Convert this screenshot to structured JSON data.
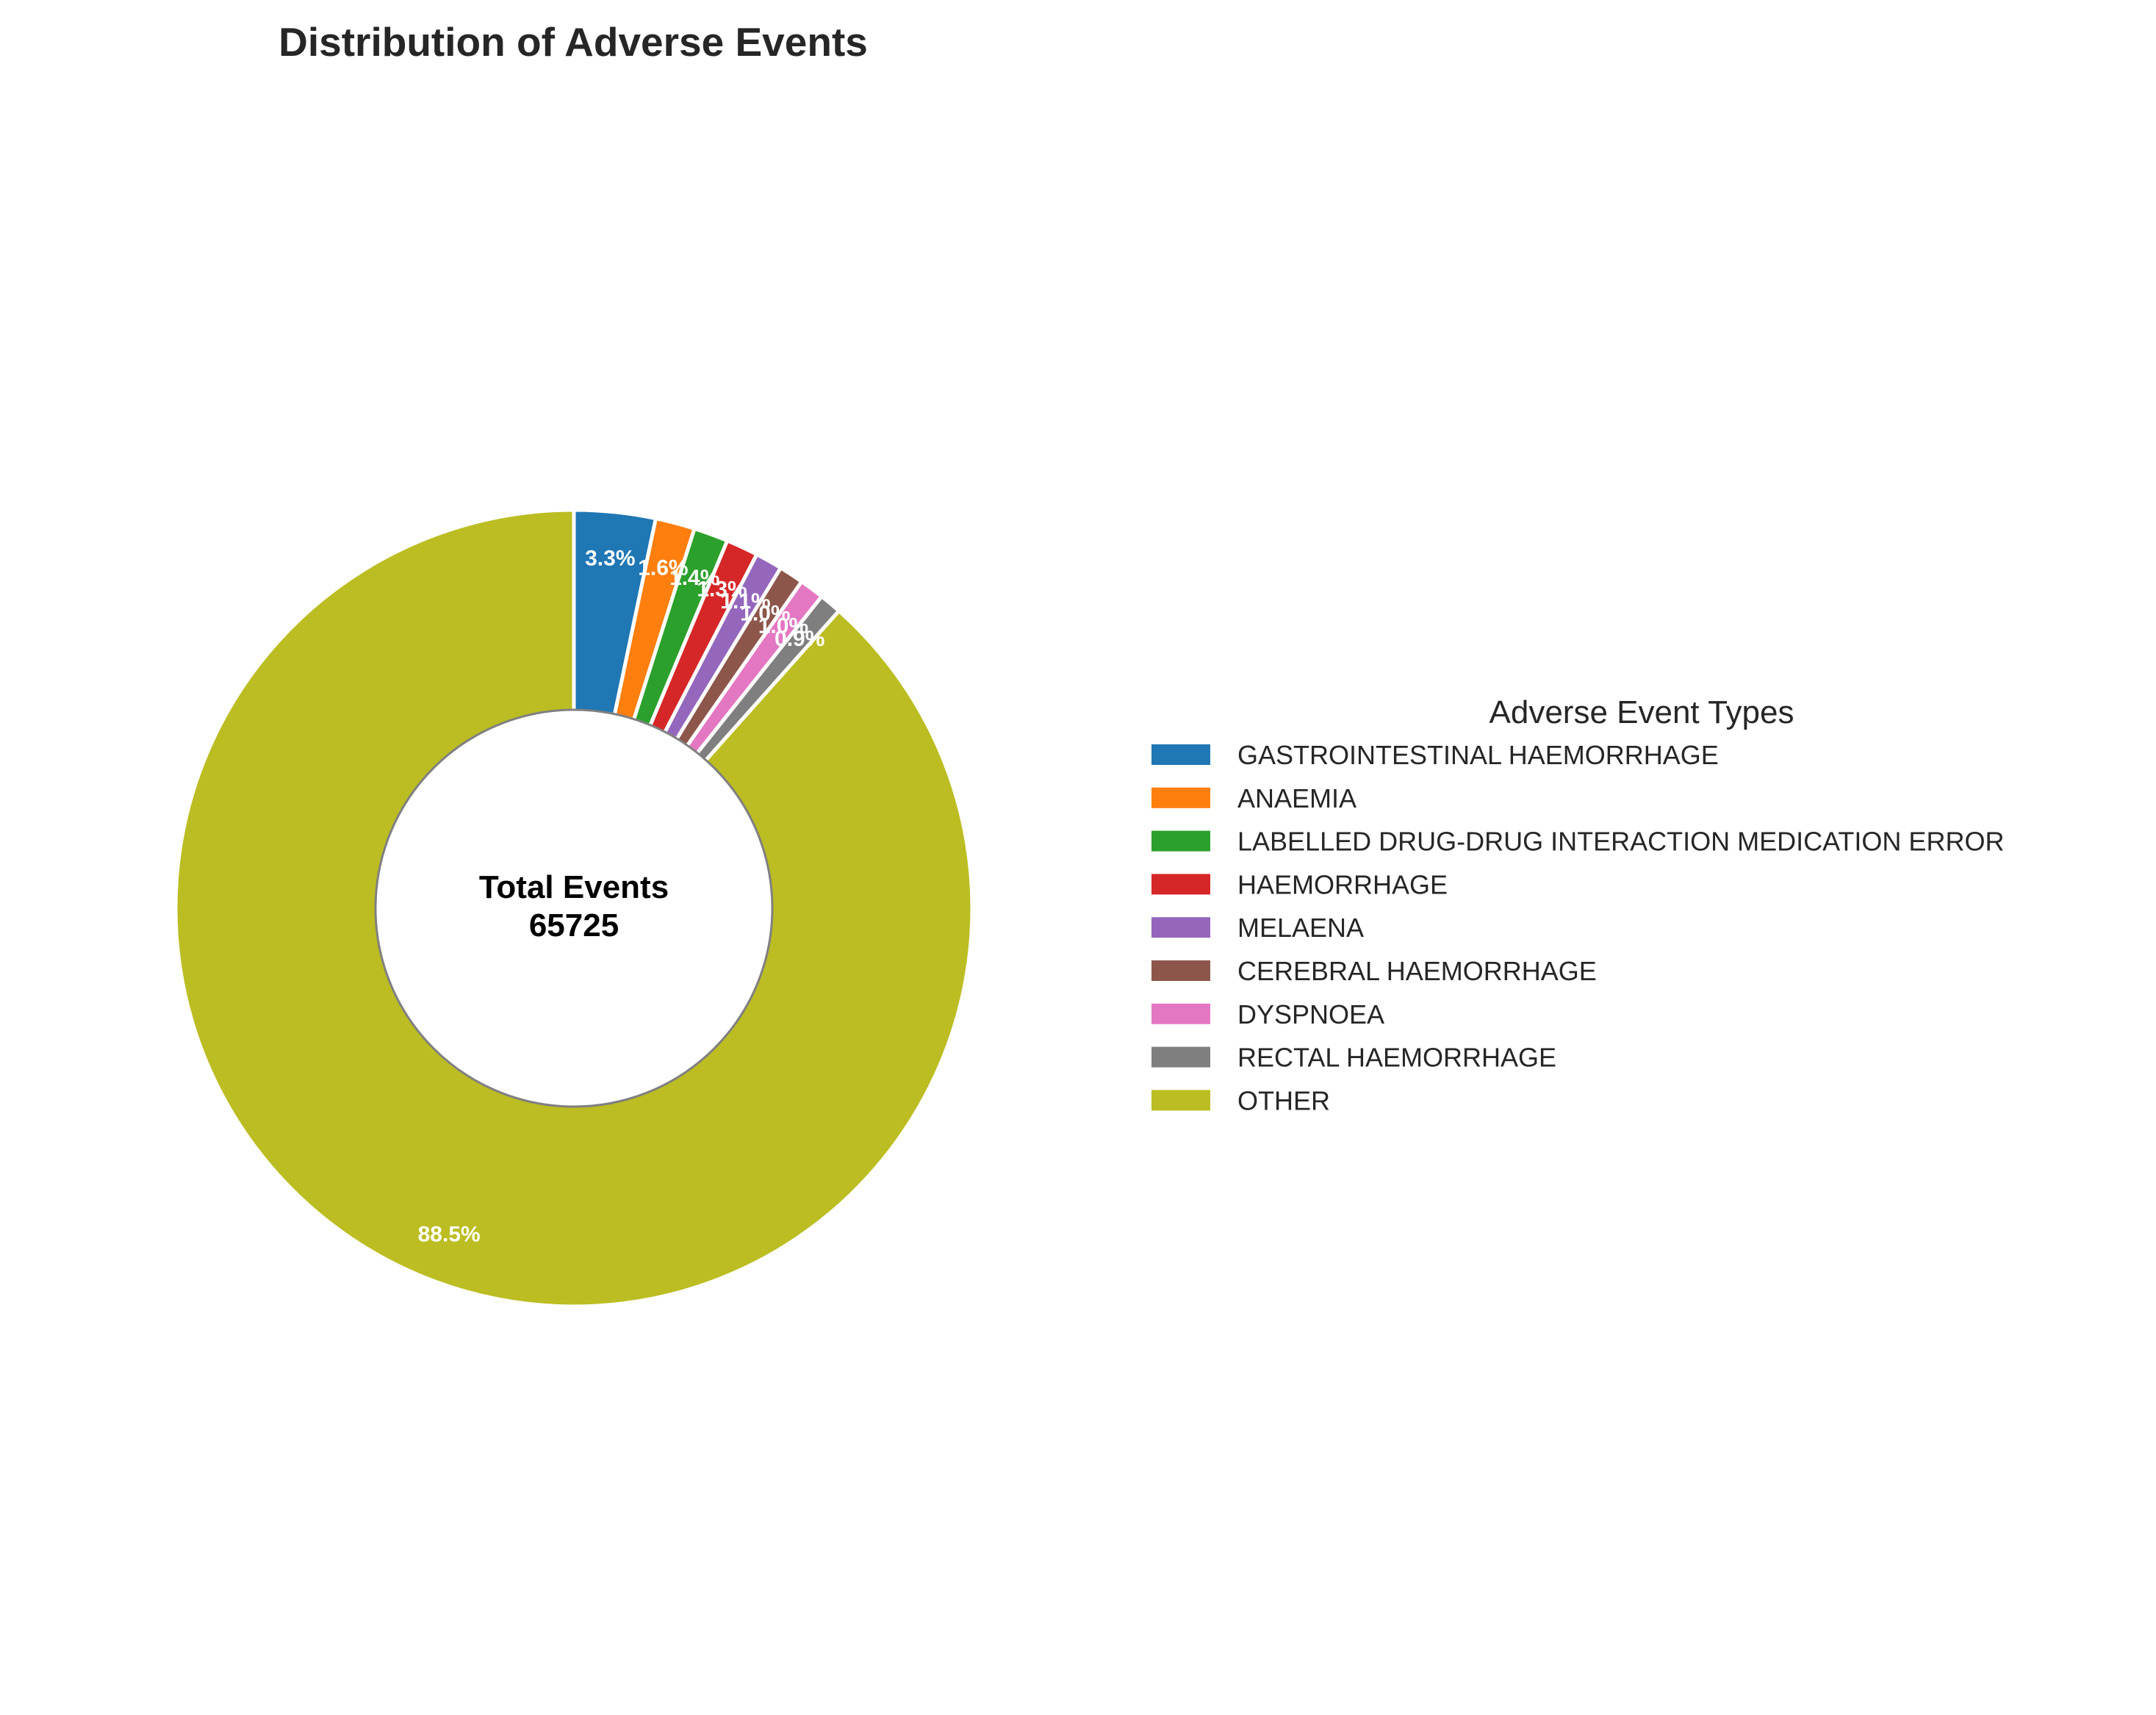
{
  "chart_data": {
    "type": "pie",
    "style": "donut",
    "title": "Distribution of Adverse Events",
    "center_label": {
      "line1": "Total Events",
      "line2": "65725"
    },
    "legend": {
      "title": "Adverse Event Types",
      "placement": "right"
    },
    "start_angle_deg": 90,
    "direction": "clockwise",
    "slices": [
      {
        "label": "GASTROINTESTINAL HAEMORRHAGE",
        "percent": 3.3,
        "pct_label": "3.3%",
        "color": "#1f77b4"
      },
      {
        "label": "ANAEMIA",
        "percent": 1.6,
        "pct_label": "1.6%",
        "color": "#ff7f0e"
      },
      {
        "label": "LABELLED DRUG-DRUG INTERACTION MEDICATION ERROR",
        "percent": 1.4,
        "pct_label": "1.4%",
        "color": "#2ca02c"
      },
      {
        "label": "HAEMORRHAGE",
        "percent": 1.3,
        "pct_label": "1.3%",
        "color": "#d62728"
      },
      {
        "label": "MELAENA",
        "percent": 1.1,
        "pct_label": "1.1%",
        "color": "#9467bd"
      },
      {
        "label": "CEREBRAL HAEMORRHAGE",
        "percent": 1.0,
        "pct_label": "1.0%",
        "color": "#8c564b"
      },
      {
        "label": "DYSPNOEA",
        "percent": 1.0,
        "pct_label": "1.0%",
        "color": "#e377c2"
      },
      {
        "label": "RECTAL HAEMORRHAGE",
        "percent": 0.9,
        "pct_label": "0.9%",
        "color": "#7f7f7f"
      },
      {
        "label": "OTHER",
        "percent": 88.5,
        "pct_label": "88.5%",
        "color": "#bcbd22"
      }
    ]
  }
}
